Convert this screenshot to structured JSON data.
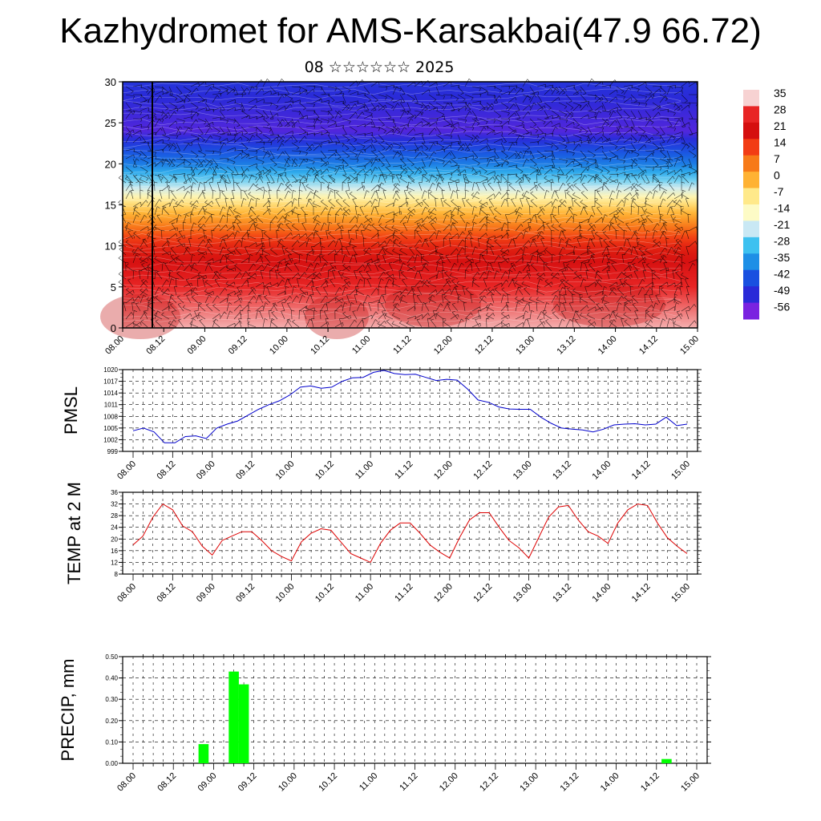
{
  "title": "Kazhydromet for AMS-Karsakbai(47.9 66.72)",
  "subtitle": "08 ☆☆☆☆☆☆ 2025",
  "chart_data": [
    {
      "type": "heatmap",
      "name": "cross-section",
      "x_ticks": [
        "08.00",
        "08.12",
        "09.00",
        "09.12",
        "10.00",
        "10.12",
        "11.00",
        "11.12",
        "12.00",
        "12.12",
        "13.00",
        "13.12",
        "14.00",
        "14.12",
        "15.00"
      ],
      "y_ticks": [
        0,
        5,
        10,
        15,
        20,
        25,
        30
      ],
      "ylim": [
        0,
        30
      ],
      "colorbar": {
        "labels": [
          35,
          28,
          21,
          14,
          7,
          0,
          -7,
          -14,
          -21,
          -28,
          -35,
          -42,
          -49,
          -56
        ],
        "colors": [
          "#f7d2d2",
          "#e82525",
          "#d50f0f",
          "#f23c14",
          "#f77a18",
          "#ffb233",
          "#ffe98a",
          "#fdfbc6",
          "#c9e8f4",
          "#3dc1f0",
          "#1e8fe6",
          "#1950e0",
          "#2a2ad8",
          "#7a22e0"
        ]
      },
      "profile": [
        [
          0,
          34
        ],
        [
          5,
          30
        ],
        [
          10,
          18
        ],
        [
          15,
          -5
        ],
        [
          20,
          -38
        ],
        [
          24,
          -56
        ],
        [
          30,
          -50
        ]
      ],
      "overlay": "wind barbs"
    },
    {
      "type": "line",
      "ylabel": "PMSL",
      "x_ticks": [
        "08.00",
        "08.12",
        "09.00",
        "09.12",
        "10.00",
        "10.12",
        "11.00",
        "11.12",
        "12.00",
        "12.12",
        "13.00",
        "13.12",
        "14.00",
        "14.12",
        "15.00"
      ],
      "y_ticks": [
        "999",
        "1002",
        "1005",
        "1008",
        "1011",
        "1014",
        "1017",
        "1020"
      ],
      "ylim": [
        999,
        1020
      ],
      "series": [
        {
          "color": "#0000cc",
          "values": [
            1004.3,
            1005.0,
            1004.0,
            1001.2,
            1001.2,
            1002.8,
            1003.0,
            1002.3,
            1005.0,
            1006.0,
            1006.8,
            1008.3,
            1009.8,
            1011.0,
            1012.0,
            1013.5,
            1015.5,
            1015.8,
            1015.2,
            1015.5,
            1017.0,
            1017.9,
            1018.0,
            1019.3,
            1019.8,
            1019.0,
            1018.7,
            1018.8,
            1018.0,
            1017.2,
            1017.5,
            1017.3,
            1015.0,
            1012.2,
            1011.6,
            1010.4,
            1009.9,
            1009.8,
            1009.8,
            1007.8,
            1006.2,
            1005.0,
            1004.7,
            1004.5,
            1004.0,
            1004.7,
            1005.8,
            1006.0,
            1006.1,
            1005.8,
            1006.0,
            1007.8,
            1005.6,
            1006.0
          ]
        }
      ]
    },
    {
      "type": "line",
      "ylabel": "TEMP at 2 M",
      "x_ticks": [
        "08.00",
        "08.12",
        "09.00",
        "09.12",
        "10.00",
        "10.12",
        "11.00",
        "11.12",
        "12.00",
        "12.12",
        "13.00",
        "13.12",
        "14.00",
        "14.12",
        "15.00"
      ],
      "y_ticks": [
        "8",
        "12",
        "16",
        "20",
        "24",
        "28",
        "32",
        "36"
      ],
      "ylim": [
        8,
        36
      ],
      "series": [
        {
          "color": "#dd0000",
          "values": [
            18.0,
            21.0,
            27.5,
            32.0,
            30.0,
            24.5,
            22.5,
            17.5,
            14.5,
            19.5,
            21.0,
            22.5,
            22.5,
            19.5,
            16.0,
            14.0,
            12.5,
            19.0,
            22.0,
            23.5,
            23.0,
            19.0,
            15.0,
            13.5,
            12.0,
            18.5,
            23.0,
            25.5,
            25.5,
            22.0,
            18.0,
            15.5,
            13.5,
            20.5,
            26.5,
            29.0,
            29.0,
            24.0,
            19.5,
            17.0,
            13.5,
            20.5,
            27.5,
            31.0,
            31.5,
            26.5,
            22.5,
            21.0,
            18.5,
            25.5,
            30.0,
            32.0,
            31.5,
            25.5,
            20.5,
            17.5,
            15.0
          ]
        }
      ]
    },
    {
      "type": "bar",
      "ylabel": "PRECIP, mm",
      "x_ticks": [
        "08.00",
        "08.12",
        "09.00",
        "09.12",
        "10.00",
        "10.12",
        "11.00",
        "11.12",
        "12.00",
        "12.12",
        "13.00",
        "13.12",
        "14.00",
        "14.12",
        "15.00"
      ],
      "y_ticks": [
        "0.00",
        "0.10",
        "0.20",
        "0.30",
        "0.40",
        "0.50"
      ],
      "ylim": [
        0,
        0.5
      ],
      "color": "#00ff00",
      "bars": [
        {
          "x": "08.21",
          "value": 0.09
        },
        {
          "x": "09.06",
          "value": 0.43
        },
        {
          "x": "09.09",
          "value": 0.37
        },
        {
          "x": "14.15",
          "value": 0.02
        }
      ]
    }
  ]
}
